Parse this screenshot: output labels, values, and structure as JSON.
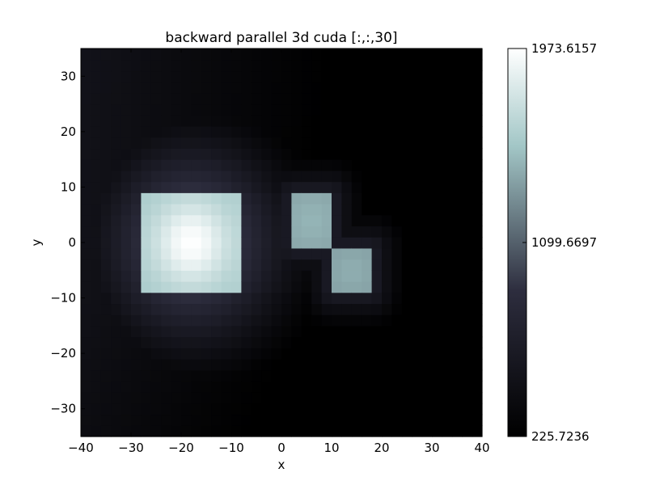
{
  "chart_data": {
    "type": "heatmap",
    "title": "backward parallel 3d cuda [:,:,30]",
    "xlabel": "x",
    "ylabel": "y",
    "xlim": [
      -40,
      40
    ],
    "ylim": [
      -35,
      35
    ],
    "x_ticks": [
      -40,
      -30,
      -20,
      -10,
      0,
      10,
      20,
      30,
      40
    ],
    "x_tick_labels": [
      "−40",
      "−30",
      "−20",
      "−10",
      "0",
      "10",
      "20",
      "30",
      "40"
    ],
    "y_ticks": [
      30,
      20,
      10,
      0,
      -10,
      -20,
      -30
    ],
    "y_tick_labels": [
      "30",
      "20",
      "10",
      "0",
      "−10",
      "−20",
      "−30"
    ],
    "colormap": "bone",
    "colorbar": {
      "min": 225.7236,
      "max": 1973.6157,
      "tick_values": [
        1973.6157,
        1099.6697,
        225.7236
      ],
      "tick_labels": [
        "1973.6157",
        "1099.6697",
        "225.7236"
      ]
    },
    "grid": false,
    "regions": [
      {
        "x_range": [
          -27,
          -9
        ],
        "y_range": [
          -9,
          9
        ],
        "peak_value": 1973.6157,
        "center": [
          -18,
          0
        ]
      },
      {
        "x_range": [
          2,
          10
        ],
        "y_range": [
          -1,
          9
        ],
        "peak_value": 1450
      },
      {
        "x_range": [
          10,
          18
        ],
        "y_range": [
          -9,
          -1
        ],
        "peak_value": 1420
      }
    ]
  }
}
